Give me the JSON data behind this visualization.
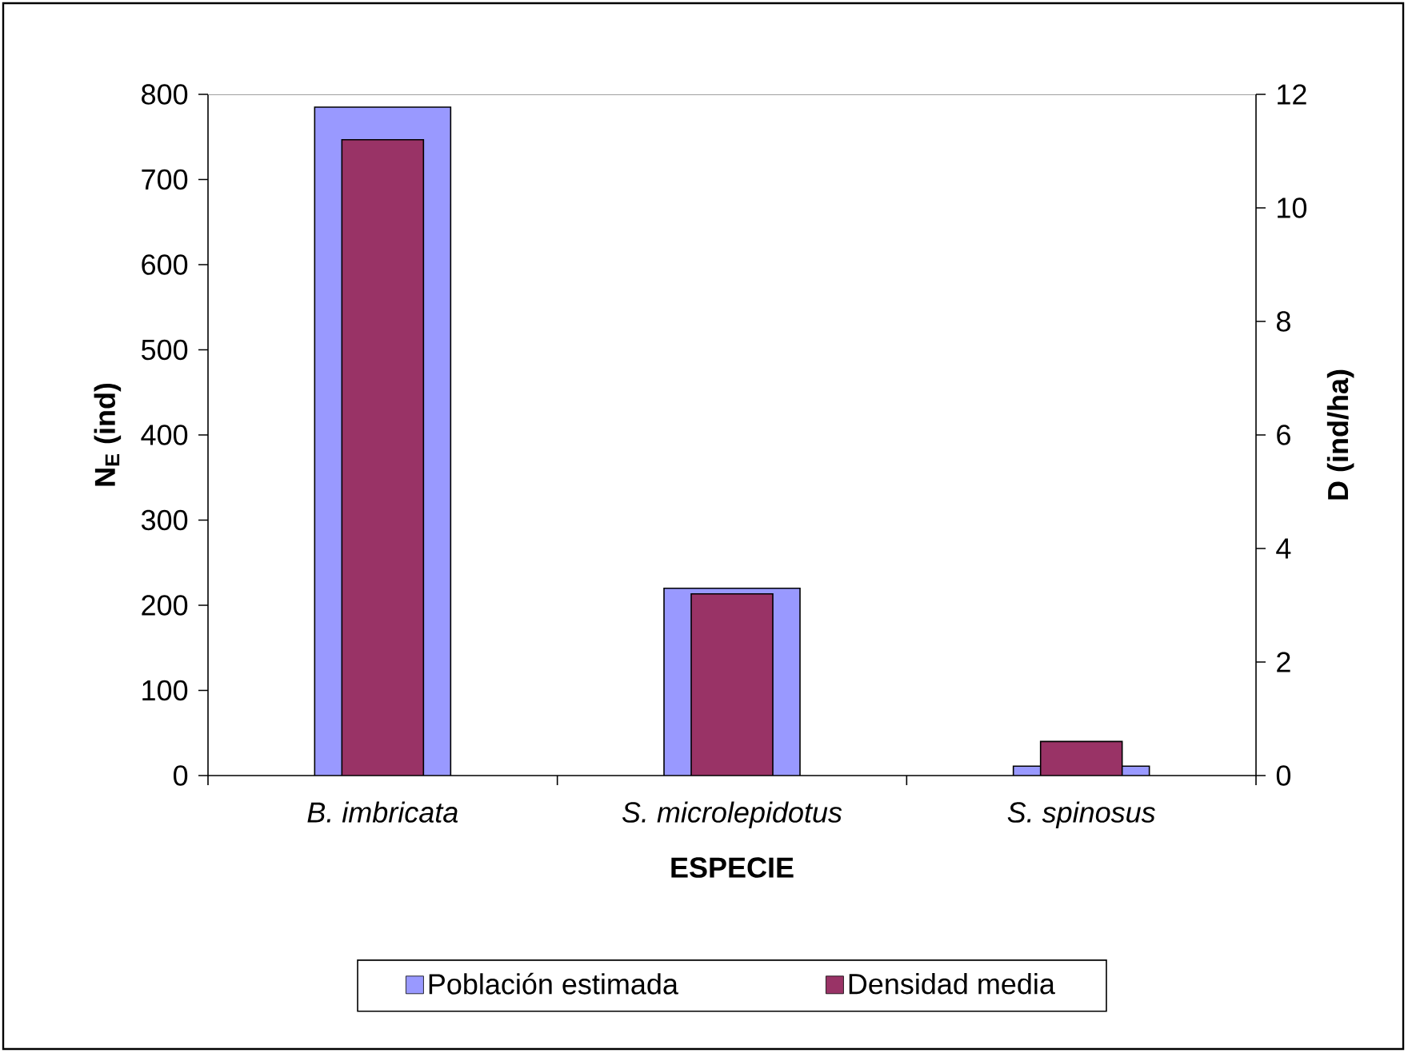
{
  "chart_data": {
    "type": "bar",
    "xlabel": "ESPECIE",
    "ylabel": "N$_{E}$ (ind)",
    "y2label": "D (ind/ha)",
    "categories": [
      "B. imbricata",
      "S. microlepidotus",
      "S. spinosus"
    ],
    "series": [
      {
        "name": "Población estimada",
        "color": "#9999ff",
        "values": [
          785,
          220,
          11
        ]
      },
      {
        "name": "Densidad media",
        "color": "#993366",
        "values": [
          11.2,
          3.2,
          0.6
        ],
        "axis": "y2"
      }
    ],
    "ylim": [
      0,
      800
    ],
    "yticks": [
      0,
      100,
      200,
      300,
      400,
      500,
      600,
      700,
      800
    ],
    "y2lim": [
      0,
      12
    ],
    "y2ticks": [
      0,
      2,
      4,
      6,
      8,
      10,
      12
    ],
    "legend": "bottom"
  }
}
